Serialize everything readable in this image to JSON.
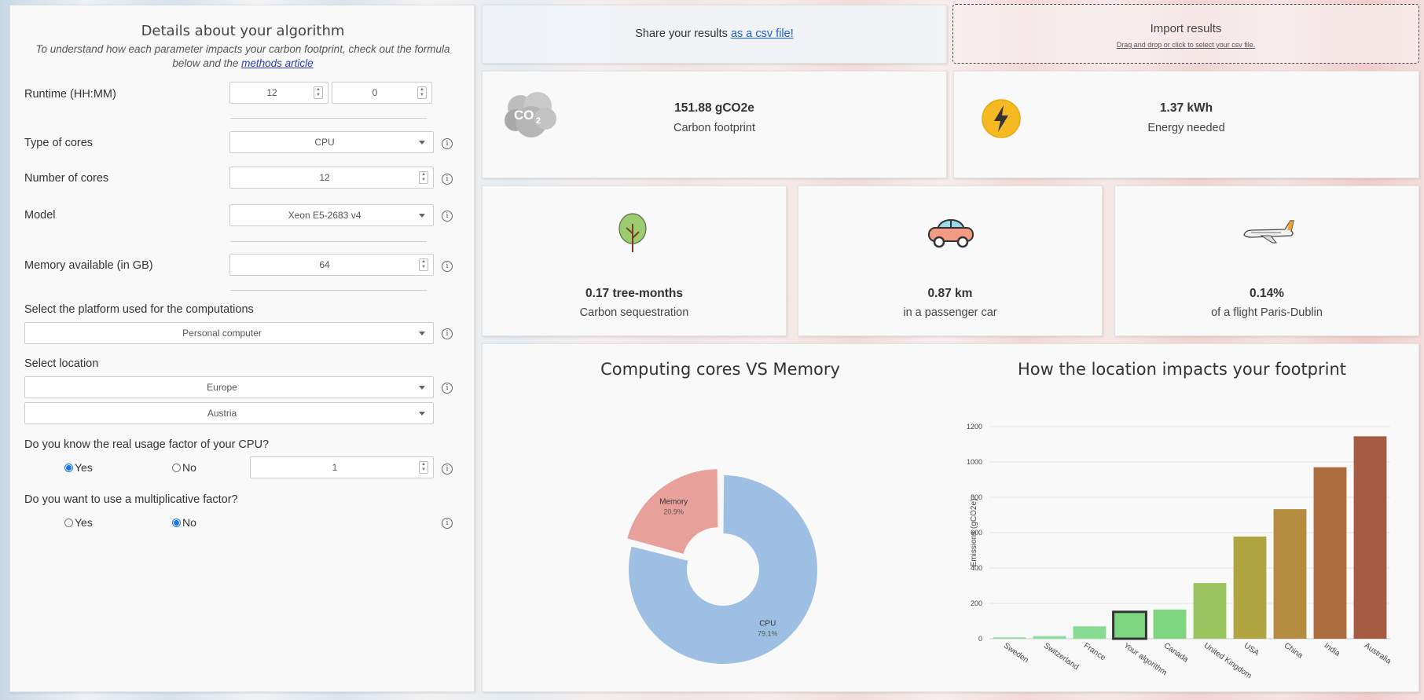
{
  "form": {
    "title": "Details about your algorithm",
    "desc_pre": "To understand how each parameter impacts your carbon footprint, check out the formula below and the ",
    "desc_link": "methods article",
    "runtime_label": "Runtime (HH:MM)",
    "runtime_hours": "12",
    "runtime_minutes": "0",
    "core_type_label": "Type of cores",
    "core_type_value": "CPU",
    "num_cores_label": "Number of cores",
    "num_cores_value": "12",
    "model_label": "Model",
    "model_value": "Xeon E5-2683 v4",
    "memory_label": "Memory available (in GB)",
    "memory_value": "64",
    "platform_label": "Select the platform used for the computations",
    "platform_value": "Personal computer",
    "location_label": "Select location",
    "location_region": "Europe",
    "location_country": "Austria",
    "usage_label": "Do you know the real usage factor of your CPU?",
    "usage_yes": "Yes",
    "usage_no": "No",
    "usage_value": "1",
    "multi_label": "Do you want to use a multiplicative factor?",
    "multi_yes": "Yes",
    "multi_no": "No",
    "info_glyph": "i"
  },
  "share": {
    "text": "Share your results ",
    "link": "as a csv file!"
  },
  "import": {
    "title": "Import results",
    "hint": "Drag and drop or click to select your csv file."
  },
  "cards": {
    "carbon": {
      "value": "151.88 gCO2e",
      "label": "Carbon footprint",
      "icon": "co2-cloud-icon"
    },
    "energy": {
      "value": "1.37 kWh",
      "label": "Energy needed",
      "icon": "lightning-icon"
    },
    "tree": {
      "value": "0.17 tree-months",
      "label": "Carbon sequestration",
      "icon": "tree-icon"
    },
    "car": {
      "value": "0.87 km",
      "label": "in a passenger car",
      "icon": "car-icon"
    },
    "flight": {
      "value": "0.14%",
      "label": "of a flight Paris-Dublin",
      "icon": "airplane-icon"
    }
  },
  "co2_glyph": "CO",
  "co2_sub": "2",
  "chart_data": [
    {
      "type": "pie",
      "title": "Computing cores VS Memory",
      "labels": [
        "CPU",
        "Memory"
      ],
      "values": [
        79.1,
        20.9
      ],
      "value_labels": [
        "79.1%",
        "20.9%"
      ],
      "colors": [
        "#9dbfe3",
        "#e8a09a"
      ]
    },
    {
      "type": "bar",
      "title": "How the location impacts your footprint",
      "ylabel": "Emissions (gCO2e)",
      "ylim": [
        0,
        1200
      ],
      "yticks": [
        0,
        200,
        400,
        600,
        800,
        1000,
        1200
      ],
      "categories": [
        "Sweden",
        "Switzerland",
        "France",
        "Your algorithm",
        "Canada",
        "United Kingdom",
        "USA",
        "China",
        "India",
        "Australia"
      ],
      "values": [
        8,
        15,
        70,
        152,
        165,
        315,
        578,
        733,
        970,
        1145
      ],
      "colors": [
        "#8fe0a0",
        "#8ee09e",
        "#86dc92",
        "#7dd67f",
        "#7dd67f",
        "#99c45e",
        "#b0a441",
        "#b38c40",
        "#ad6c3e",
        "#a55a42"
      ],
      "highlight": "Your algorithm"
    }
  ]
}
